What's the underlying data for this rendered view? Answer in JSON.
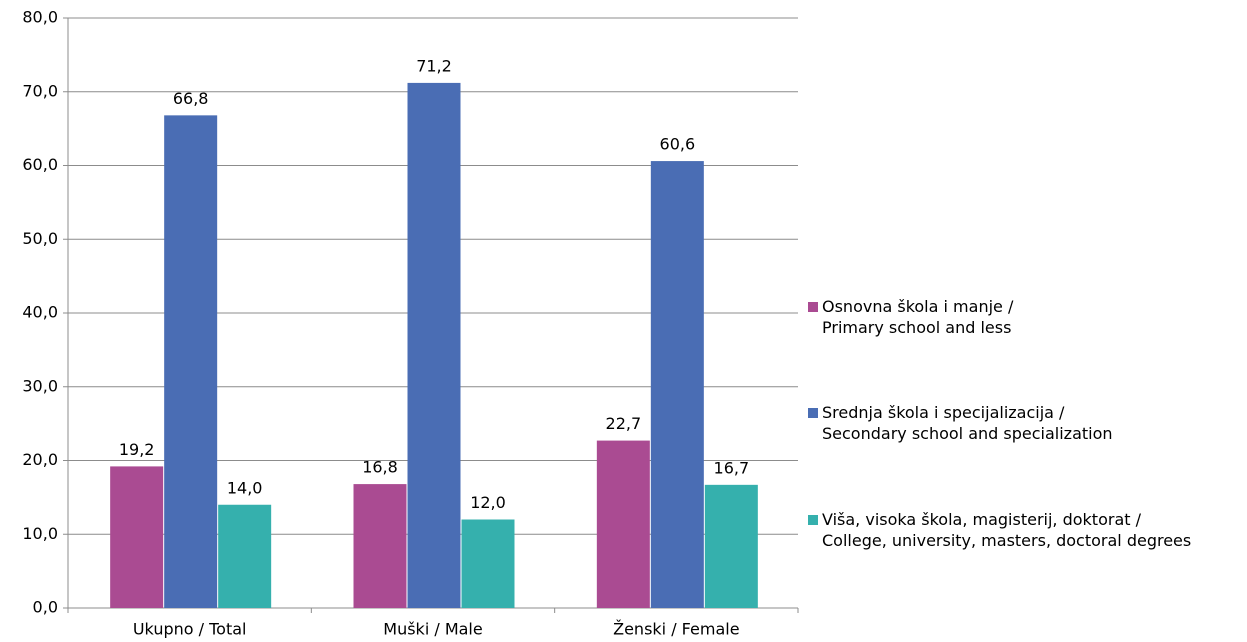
{
  "chart_data": {
    "type": "bar",
    "categories": [
      "Ukupno / Total",
      "Muški / Male",
      "Ženski / Female"
    ],
    "series": [
      {
        "name": "Osnovna škola i manje / Primary school and less",
        "color": "#aa4b92",
        "values": [
          19.2,
          16.8,
          22.7
        ],
        "value_labels": [
          "19,2",
          "16,8",
          "22,7"
        ]
      },
      {
        "name": "Srednja škola i specijalizacija / Secondary school and specialization",
        "color": "#4a6db4",
        "values": [
          66.8,
          71.2,
          60.6
        ],
        "value_labels": [
          "66,8",
          "71,2",
          "60,6"
        ]
      },
      {
        "name": "Viša, visoka škola, magisterij, doktorat / College, university, masters, doctoral degrees",
        "color": "#35b0ad",
        "values": [
          14.0,
          12.0,
          16.7
        ],
        "value_labels": [
          "14,0",
          "12,0",
          "16,7"
        ]
      }
    ],
    "ylim": [
      0,
      80
    ],
    "yticks": [
      {
        "value": 0,
        "label": "0,0"
      },
      {
        "value": 10,
        "label": "10,0"
      },
      {
        "value": 20,
        "label": "20,0"
      },
      {
        "value": 30,
        "label": "30,0"
      },
      {
        "value": 40,
        "label": "40,0"
      },
      {
        "value": 50,
        "label": "50,0"
      },
      {
        "value": 60,
        "label": "60,0"
      },
      {
        "value": 70,
        "label": "70,0"
      },
      {
        "value": 80,
        "label": "80,0"
      }
    ],
    "grid": true,
    "legend": "right"
  }
}
